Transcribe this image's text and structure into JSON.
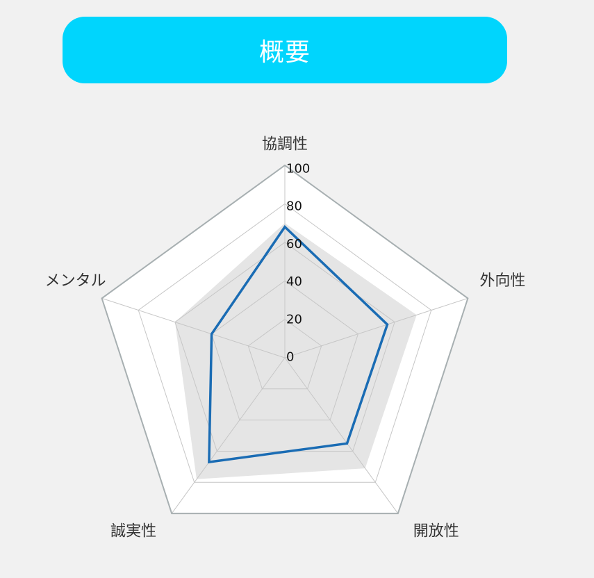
{
  "header": {
    "title": "概要"
  },
  "colors": {
    "page_background": "#f1f1f1",
    "header_background": "#00d5fd",
    "header_text": "#ffffff",
    "grid_line": "#c6c6c6",
    "outer_ring": "#a7afb1",
    "plot_background": "#ffffff"
  },
  "chart_data": {
    "type": "radar",
    "categories": [
      "協調性",
      "外向性",
      "開放性",
      "誠実性",
      "メンタル"
    ],
    "rlim": [
      0,
      100
    ],
    "ticks": [
      0,
      20,
      40,
      60,
      80,
      100
    ],
    "grid": true,
    "series": [
      {
        "values": [
          68,
          56,
          55,
          67,
          40
        ],
        "color": "#1a6cb4",
        "fill": false
      },
      {
        "values": [
          70,
          72,
          71,
          78,
          60
        ],
        "color": "#e5e5e5",
        "fill": true
      }
    ]
  }
}
